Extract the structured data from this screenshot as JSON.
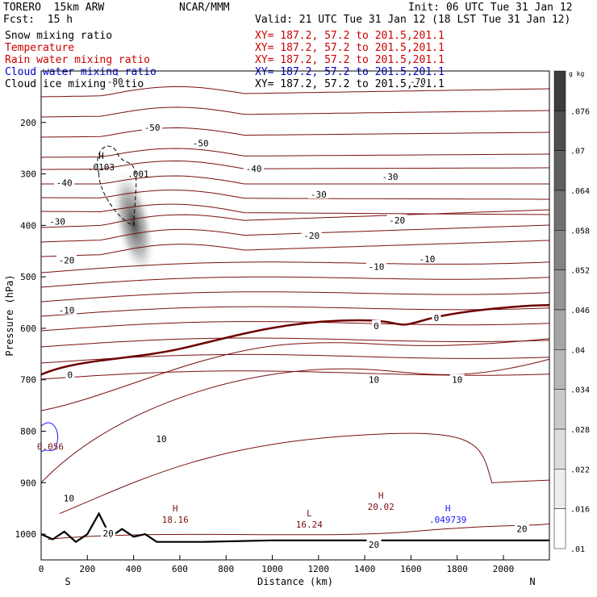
{
  "header": {
    "model": "TORERO  15km ARW",
    "center": "NCAR/MMM",
    "init": "Init: 06 UTC Tue 31 Jan 12",
    "fcst": "Fcst:  15 h",
    "valid": "Valid: 21 UTC Tue 31 Jan 12 (18 LST Tue 31 Jan 12)"
  },
  "legend": [
    {
      "name": "Snow mixing ratio",
      "color": "#000000",
      "xy": "XY= 187.2, 57.2 to 201.5,201.1",
      "xycolor": "#cc0000"
    },
    {
      "name": "Temperature",
      "color": "#cc0000",
      "xy": "XY= 187.2, 57.2 to 201.5,201.1",
      "xycolor": "#cc0000"
    },
    {
      "name": "Rain water mixing ratio",
      "color": "#cc0000",
      "xy": "XY= 187.2, 57.2 to 201.5,201.1",
      "xycolor": "#cc0000"
    },
    {
      "name": "Cloud water mixing ratio",
      "color": "#0000cc",
      "xy": "XY= 187.2, 57.2 to 201.5,201.1",
      "xycolor": "#0000cc"
    },
    {
      "name": "Cloud ice mixing ratio",
      "color": "#000000",
      "xy": "XY= 187.2, 57.2 to 201.5,201.1",
      "xycolor": "#000000"
    }
  ],
  "colors": {
    "temperature": "#7a1010",
    "zero_line": "#6e0000",
    "terrain": "#000000",
    "cloud_water": "#1a1aff"
  },
  "chart_data": {
    "type": "contour",
    "xlabel": "Distance (km)",
    "ylabel": "Pressure (hPa)",
    "xlim": [
      0,
      2200
    ],
    "ylim": [
      1050,
      100
    ],
    "xticks": [
      0,
      200,
      400,
      600,
      800,
      1000,
      1200,
      1400,
      1600,
      1800,
      2000
    ],
    "yticks": [
      200,
      300,
      400,
      500,
      600,
      700,
      800,
      900,
      1000
    ],
    "x_end_labels": {
      "left": "S",
      "right": "N"
    },
    "colorbar": {
      "unit": "g kg",
      "ticks": [
        ".076",
        ".07",
        ".064",
        ".058",
        ".052",
        ".046",
        ".04",
        ".034",
        ".028",
        ".022",
        ".016",
        ".01"
      ]
    },
    "isotherm_labels": [
      {
        "text": "-50",
        "x": 690,
        "p": 240
      },
      {
        "text": "-50",
        "x": 480,
        "p": 210
      },
      {
        "text": "-40",
        "x": 100,
        "p": 317
      },
      {
        "text": "-40",
        "x": 920,
        "p": 290
      },
      {
        "text": "-30",
        "x": 70,
        "p": 392
      },
      {
        "text": "-30",
        "x": 1200,
        "p": 340
      },
      {
        "text": "-30",
        "x": 1510,
        "p": 305
      },
      {
        "text": "-20",
        "x": 110,
        "p": 468
      },
      {
        "text": "-20",
        "x": 1170,
        "p": 420
      },
      {
        "text": "-20",
        "x": 1540,
        "p": 390
      },
      {
        "text": "-10",
        "x": 110,
        "p": 565
      },
      {
        "text": "-10",
        "x": 1450,
        "p": 480
      },
      {
        "text": "-10",
        "x": 1670,
        "p": 465
      },
      {
        "text": "-70",
        "x": 1630,
        "p": 120
      },
      {
        "text": "-80",
        "x": 320,
        "p": 120
      },
      {
        "text": "0",
        "x": 125,
        "p": 690
      },
      {
        "text": "0",
        "x": 1450,
        "p": 595
      },
      {
        "text": "0",
        "x": 1710,
        "p": 580
      },
      {
        "text": "10",
        "x": 1440,
        "p": 700
      },
      {
        "text": "10",
        "x": 1800,
        "p": 700
      },
      {
        "text": "10",
        "x": 520,
        "p": 815
      },
      {
        "text": "10",
        "x": 120,
        "p": 930
      },
      {
        "text": "20",
        "x": 290,
        "p": 998
      },
      {
        "text": "20",
        "x": 2080,
        "p": 990
      },
      {
        "text": "20",
        "x": 1440,
        "p": 1020
      }
    ],
    "max_min_labels": [
      {
        "symbol": "H",
        "value": "18.16",
        "x": 580,
        "p": 965
      },
      {
        "symbol": "L",
        "value": "16.24",
        "x": 1160,
        "p": 975
      },
      {
        "symbol": "H",
        "value": "20.02",
        "x": 1470,
        "p": 940
      },
      {
        "symbol": "H",
        "value": ".049739",
        "x": 1760,
        "p": 965,
        "series": "cloud_water"
      },
      {
        "symbol": "H",
        "value": ".0103",
        "x": 260,
        "p": 280
      }
    ],
    "extra_labels": [
      {
        "text": ".001",
        "x": 420,
        "p": 300
      },
      {
        "text": "0.056",
        "x": 40,
        "p": 830
      }
    ]
  }
}
